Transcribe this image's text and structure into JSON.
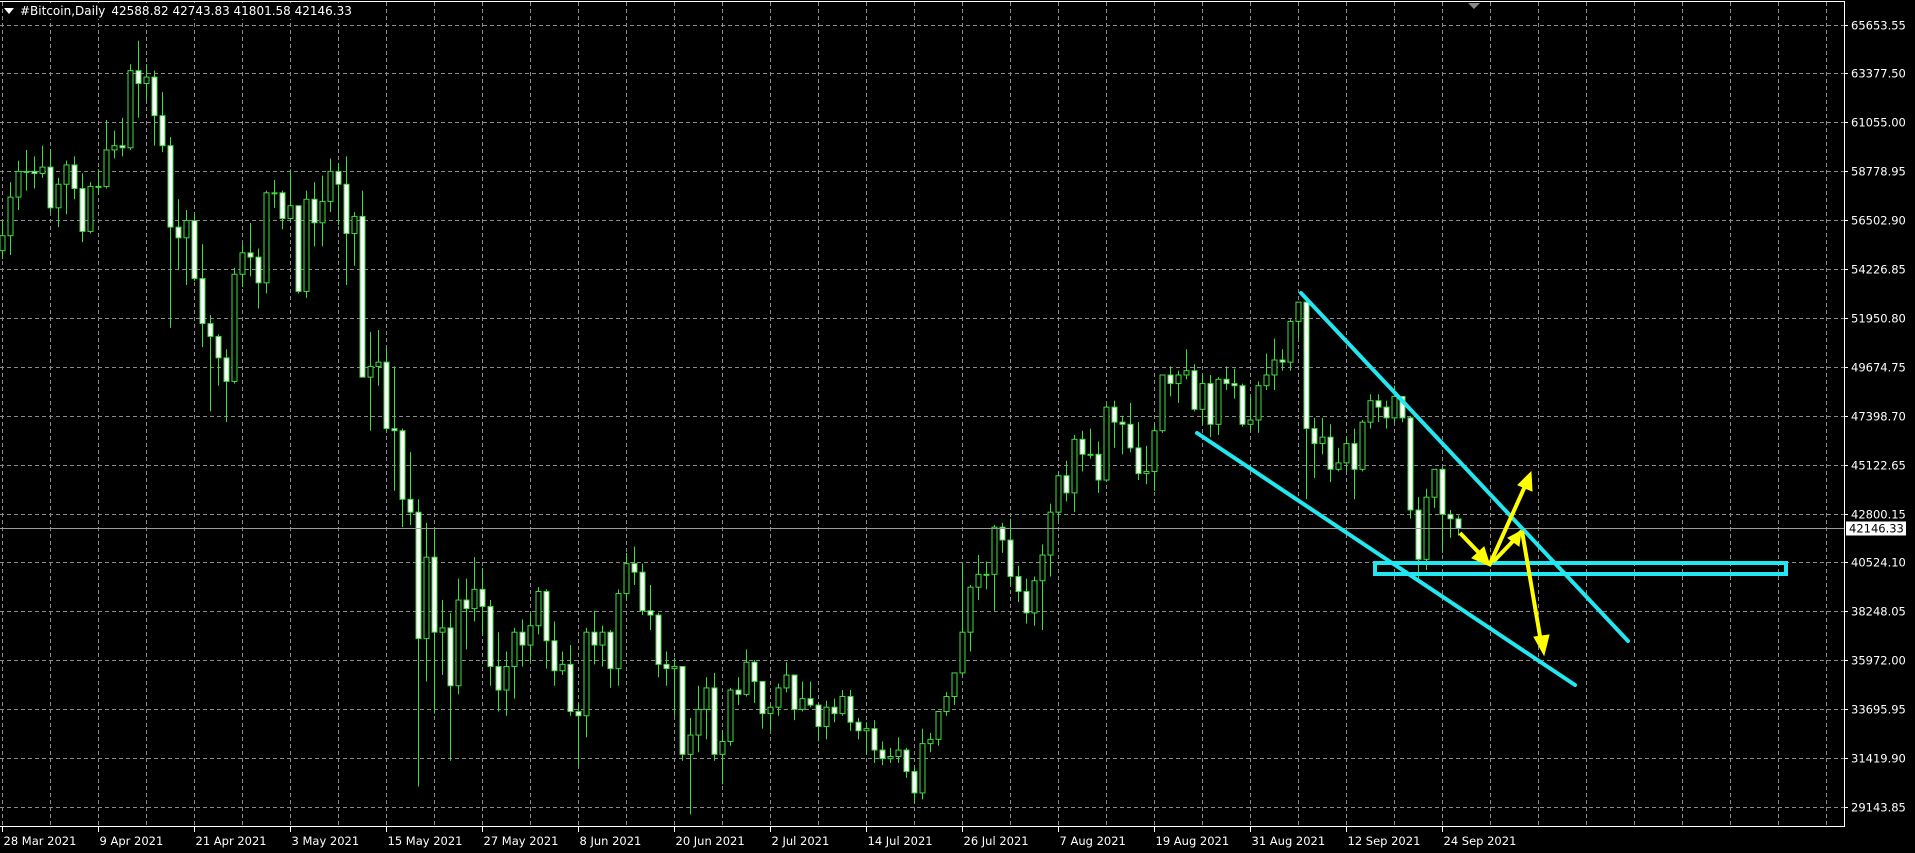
{
  "header": {
    "symbol": "#Bitcoin,Daily",
    "ohlc": "42588.82 42743.83 41801.58 42146.33"
  },
  "colors": {
    "background": "#000000",
    "grid": "#8a8a8a",
    "axis": "#ffffff",
    "candle_outline": "#3fdc3f",
    "bull_fill": "#000000",
    "bear_fill": "#ffffff",
    "bid_line": "#9a9a9a",
    "trendline": "#22e6f0",
    "arrow": "#ffff00"
  },
  "chart_data": {
    "type": "candlestick",
    "title": "#Bitcoin,Daily",
    "bid": 42146.33,
    "bid_label": "42146.33",
    "ylim": [
      29143.85,
      65653.55
    ],
    "grid": true,
    "y_ticks": [
      "65653.55",
      "63377.50",
      "61055.00",
      "58778.95",
      "56502.90",
      "54226.85",
      "51950.80",
      "49674.75",
      "47398.70",
      "45122.65",
      "42800.15",
      "40524.10",
      "38248.05",
      "35972.00",
      "33695.95",
      "31419.90",
      "29143.85"
    ],
    "x_ticks": [
      "28 Mar 2021",
      "9 Apr 2021",
      "21 Apr 2021",
      "3 May 2021",
      "15 May 2021",
      "27 May 2021",
      "8 Jun 2021",
      "20 Jun 2021",
      "2 Jul 2021",
      "14 Jul 2021",
      "26 Jul 2021",
      "7 Aug 2021",
      "19 Aug 2021",
      "31 Aug 2021",
      "12 Sep 2021",
      "24 Sep 2021"
    ],
    "first_date": "28 Mar 2021",
    "ohlc": [
      [
        55100,
        56500,
        54700,
        55800
      ],
      [
        55800,
        58300,
        54900,
        57600
      ],
      [
        57600,
        59300,
        57000,
        58800
      ],
      [
        58800,
        59800,
        57900,
        58800
      ],
      [
        58800,
        59500,
        58000,
        58700
      ],
      [
        58700,
        60000,
        58500,
        59000
      ],
      [
        59000,
        59800,
        56900,
        57100
      ],
      [
        57100,
        58500,
        56200,
        58200
      ],
      [
        58200,
        59300,
        56800,
        59100
      ],
      [
        59100,
        59500,
        57500,
        58000
      ],
      [
        58000,
        58700,
        55500,
        56000
      ],
      [
        56000,
        58300,
        55900,
        58100
      ],
      [
        58100,
        58900,
        57700,
        58100
      ],
      [
        58100,
        61200,
        58000,
        59800
      ],
      [
        59800,
        60700,
        59400,
        60000
      ],
      [
        60000,
        61300,
        59500,
        59900
      ],
      [
        59900,
        63800,
        59800,
        63500
      ],
      [
        63500,
        64900,
        61300,
        62900
      ],
      [
        62900,
        63800,
        62100,
        63200
      ],
      [
        63200,
        63500,
        60000,
        61400
      ],
      [
        61400,
        62500,
        59700,
        60000
      ],
      [
        60000,
        60400,
        51500,
        56200
      ],
      [
        56200,
        57500,
        54200,
        55700
      ],
      [
        55700,
        57000,
        53500,
        56500
      ],
      [
        56500,
        56800,
        53700,
        53800
      ],
      [
        53800,
        55400,
        50600,
        51700
      ],
      [
        51700,
        52100,
        47600,
        51100
      ],
      [
        51100,
        51200,
        48800,
        50100
      ],
      [
        50100,
        50500,
        47100,
        49000
      ],
      [
        49000,
        54300,
        48900,
        54000
      ],
      [
        54000,
        55400,
        53400,
        55000
      ],
      [
        55000,
        56400,
        53900,
        54800
      ],
      [
        54800,
        55200,
        52400,
        53600
      ],
      [
        53600,
        57900,
        53100,
        57800
      ],
      [
        57800,
        58400,
        57100,
        57800
      ],
      [
        57800,
        57900,
        56100,
        56600
      ],
      [
        56600,
        58900,
        56500,
        57200
      ],
      [
        57200,
        57200,
        53100,
        53200
      ],
      [
        53200,
        57900,
        52900,
        57500
      ],
      [
        57500,
        58300,
        55300,
        56400
      ],
      [
        56400,
        58600,
        55300,
        57400
      ],
      [
        57400,
        59400,
        56900,
        58800
      ],
      [
        58800,
        59200,
        56300,
        58200
      ],
      [
        58200,
        59500,
        53500,
        55900
      ],
      [
        55900,
        56900,
        54400,
        56700
      ],
      [
        56700,
        57900,
        49200,
        49200
      ],
      [
        49200,
        51300,
        46700,
        49700
      ],
      [
        49700,
        51400,
        48800,
        49900
      ],
      [
        49900,
        50600,
        46700,
        46800
      ],
      [
        46800,
        49700,
        43900,
        46700
      ],
      [
        46700,
        46800,
        42200,
        43500
      ],
      [
        43500,
        45700,
        42300,
        42900
      ],
      [
        42900,
        43500,
        30100,
        37000
      ],
      [
        37000,
        42400,
        35000,
        40800
      ],
      [
        40800,
        42100,
        33500,
        37300
      ],
      [
        37300,
        38800,
        35300,
        37500
      ],
      [
        37500,
        38200,
        31300,
        34800
      ],
      [
        34800,
        39800,
        34400,
        38800
      ],
      [
        38800,
        39800,
        36500,
        38400
      ],
      [
        38400,
        40800,
        37800,
        39300
      ],
      [
        39300,
        40300,
        37200,
        38500
      ],
      [
        38500,
        38800,
        34800,
        35700
      ],
      [
        35700,
        37300,
        33600,
        34600
      ],
      [
        34600,
        36400,
        33400,
        35700
      ],
      [
        35700,
        37500,
        34200,
        37300
      ],
      [
        37300,
        37900,
        35700,
        36700
      ],
      [
        36700,
        38200,
        35900,
        37600
      ],
      [
        37600,
        39400,
        37200,
        39200
      ],
      [
        39200,
        39300,
        35600,
        36900
      ],
      [
        36900,
        37800,
        34800,
        35500
      ],
      [
        35500,
        36400,
        35300,
        35800
      ],
      [
        35800,
        36700,
        33400,
        33600
      ],
      [
        33600,
        34000,
        31100,
        33400
      ],
      [
        33400,
        37500,
        32400,
        37300
      ],
      [
        37300,
        38300,
        35800,
        36700
      ],
      [
        36700,
        37600,
        35700,
        37300
      ],
      [
        37300,
        37400,
        34700,
        35600
      ],
      [
        35600,
        39300,
        34800,
        39100
      ],
      [
        39100,
        41000,
        38800,
        40500
      ],
      [
        40500,
        41300,
        39500,
        40100
      ],
      [
        40100,
        40500,
        38100,
        38300
      ],
      [
        38300,
        39500,
        37400,
        38100
      ],
      [
        38100,
        38200,
        35200,
        35800
      ],
      [
        35800,
        36400,
        34800,
        35600
      ],
      [
        35600,
        36100,
        33400,
        35700
      ],
      [
        35700,
        35700,
        31300,
        31600
      ],
      [
        31600,
        33300,
        28800,
        32500
      ],
      [
        32500,
        34800,
        31700,
        33700
      ],
      [
        33700,
        35200,
        32300,
        34700
      ],
      [
        34700,
        35400,
        31300,
        31600
      ],
      [
        31600,
        32700,
        30200,
        32200
      ],
      [
        32200,
        34700,
        32000,
        34600
      ],
      [
        34600,
        35200,
        33900,
        34400
      ],
      [
        34400,
        36500,
        34300,
        35900
      ],
      [
        35900,
        36000,
        34000,
        35000
      ],
      [
        35000,
        35000,
        32800,
        33500
      ],
      [
        33500,
        33900,
        32700,
        33800
      ],
      [
        33800,
        34900,
        33400,
        34700
      ],
      [
        34700,
        35900,
        34500,
        35300
      ],
      [
        35300,
        35300,
        33200,
        33700
      ],
      [
        33700,
        35000,
        33600,
        34200
      ],
      [
        34200,
        35000,
        33800,
        33900
      ],
      [
        33900,
        33900,
        32200,
        32900
      ],
      [
        32900,
        34100,
        32300,
        33800
      ],
      [
        33800,
        34200,
        33100,
        33500
      ],
      [
        33500,
        34600,
        33400,
        34300
      ],
      [
        34300,
        34600,
        32700,
        33100
      ],
      [
        33100,
        33300,
        32300,
        32700
      ],
      [
        32700,
        33100,
        31600,
        32800
      ],
      [
        32800,
        33200,
        31200,
        31800
      ],
      [
        31800,
        32200,
        31100,
        31400
      ],
      [
        31400,
        31900,
        31200,
        31500
      ],
      [
        31500,
        32400,
        31200,
        31800
      ],
      [
        31800,
        31900,
        30500,
        30800
      ],
      [
        30800,
        31000,
        29300,
        29800
      ],
      [
        29800,
        32800,
        29500,
        32100
      ],
      [
        32100,
        32600,
        31700,
        32300
      ],
      [
        32300,
        33600,
        32000,
        33600
      ],
      [
        33600,
        34500,
        33400,
        34300
      ],
      [
        34300,
        35400,
        33900,
        35400
      ],
      [
        35400,
        40500,
        35300,
        37300
      ],
      [
        37300,
        39500,
        36400,
        39400
      ],
      [
        39400,
        40900,
        38800,
        40000
      ],
      [
        40000,
        40600,
        39300,
        40000
      ],
      [
        40000,
        42300,
        38300,
        42200
      ],
      [
        42200,
        42400,
        41000,
        41600
      ],
      [
        41600,
        42600,
        39500,
        39900
      ],
      [
        39900,
        40400,
        38700,
        39200
      ],
      [
        39200,
        39800,
        37700,
        38200
      ],
      [
        38200,
        39900,
        37600,
        39700
      ],
      [
        39700,
        41400,
        37400,
        40900
      ],
      [
        40900,
        43300,
        39900,
        42900
      ],
      [
        42900,
        44700,
        42500,
        44600
      ],
      [
        44600,
        45300,
        43400,
        43800
      ],
      [
        43800,
        46500,
        42900,
        46300
      ],
      [
        46300,
        46700,
        44800,
        45600
      ],
      [
        45600,
        46800,
        45400,
        45600
      ],
      [
        45600,
        46200,
        43800,
        44400
      ],
      [
        44400,
        47900,
        44300,
        47800
      ],
      [
        47800,
        48100,
        45900,
        47100
      ],
      [
        47100,
        47400,
        45600,
        47000
      ],
      [
        47000,
        48000,
        45700,
        45900
      ],
      [
        45900,
        47100,
        44400,
        44700
      ],
      [
        44700,
        46000,
        44200,
        44800
      ],
      [
        44800,
        47000,
        43900,
        46700
      ],
      [
        46700,
        49300,
        46600,
        49300
      ],
      [
        49300,
        49700,
        48300,
        48900
      ],
      [
        48900,
        49500,
        48000,
        49300
      ],
      [
        49300,
        50500,
        49100,
        49500
      ],
      [
        49500,
        49800,
        47600,
        47700
      ],
      [
        47700,
        49300,
        47000,
        48900
      ],
      [
        48900,
        49300,
        46400,
        47000
      ],
      [
        47000,
        49200,
        46500,
        49100
      ],
      [
        49100,
        49700,
        48600,
        48900
      ],
      [
        48900,
        49600,
        48200,
        48800
      ],
      [
        48800,
        48900,
        46900,
        47000
      ],
      [
        47000,
        48300,
        46700,
        47200
      ],
      [
        47200,
        49000,
        46600,
        48800
      ],
      [
        48800,
        50300,
        48600,
        49300
      ],
      [
        49300,
        51000,
        48600,
        50000
      ],
      [
        50000,
        50500,
        49500,
        49900
      ],
      [
        49900,
        51900,
        49500,
        51800
      ],
      [
        51800,
        52700,
        51000,
        52700
      ],
      [
        52700,
        52900,
        43500,
        46800
      ],
      [
        46800,
        47300,
        44500,
        46100
      ],
      [
        46100,
        47300,
        45600,
        46400
      ],
      [
        46400,
        47000,
        44300,
        44900
      ],
      [
        44900,
        45900,
        44800,
        45200
      ],
      [
        45200,
        46400,
        44800,
        46100
      ],
      [
        46100,
        46800,
        43500,
        44900
      ],
      [
        44900,
        47200,
        44800,
        47100
      ],
      [
        47100,
        48400,
        46800,
        48100
      ],
      [
        48100,
        48400,
        47100,
        47800
      ],
      [
        47800,
        48100,
        46800,
        47300
      ],
      [
        47300,
        48800,
        47100,
        48300
      ],
      [
        48300,
        48300,
        47100,
        47300
      ],
      [
        47300,
        47400,
        42600,
        43000
      ],
      [
        43000,
        43600,
        39700,
        40700
      ],
      [
        40700,
        44000,
        40200,
        43600
      ],
      [
        43600,
        44900,
        43100,
        44900
      ],
      [
        44900,
        45000,
        41000,
        42800
      ],
      [
        42800,
        43000,
        41700,
        42588.82
      ],
      [
        42588.82,
        42743.83,
        41801.58,
        42146.33
      ]
    ]
  }
}
